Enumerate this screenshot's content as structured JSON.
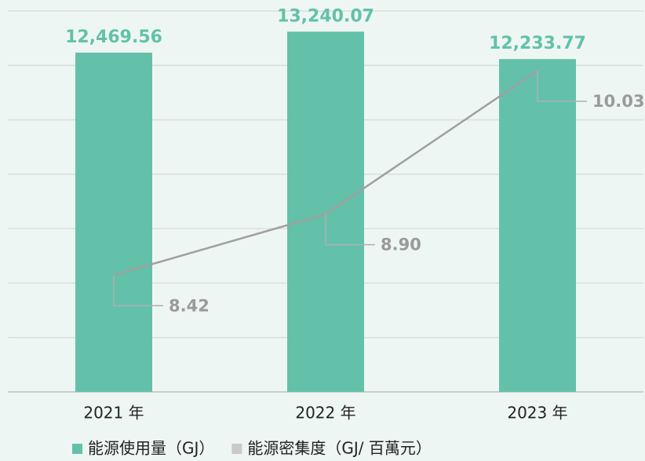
{
  "chart_data": {
    "type": "bar_line",
    "categories": [
      "2021 年",
      "2022 年",
      "2023 年"
    ],
    "series": [
      {
        "name": "能源使用量（GJ）",
        "type": "bar",
        "color": "#63c1a9",
        "values": [
          12469.56,
          13240.07,
          12233.77
        ],
        "value_labels": [
          "12,469.56",
          "13,240.07",
          "12,233.77"
        ]
      },
      {
        "name": "能源密集度（GJ/ 百萬元）",
        "type": "line",
        "axis": "y2",
        "color": "#a0a0a0",
        "values": [
          8.42,
          8.9,
          10.03
        ],
        "value_labels": [
          "8.42",
          "8.90",
          "10.03"
        ]
      }
    ],
    "ylim": [
      0,
      14000
    ],
    "yticks": [
      0,
      2000,
      4000,
      6000,
      8000,
      10000,
      12000,
      14000
    ],
    "y2lim": [
      7.5,
      10.5
    ],
    "grid": true,
    "legend": "bottom"
  }
}
